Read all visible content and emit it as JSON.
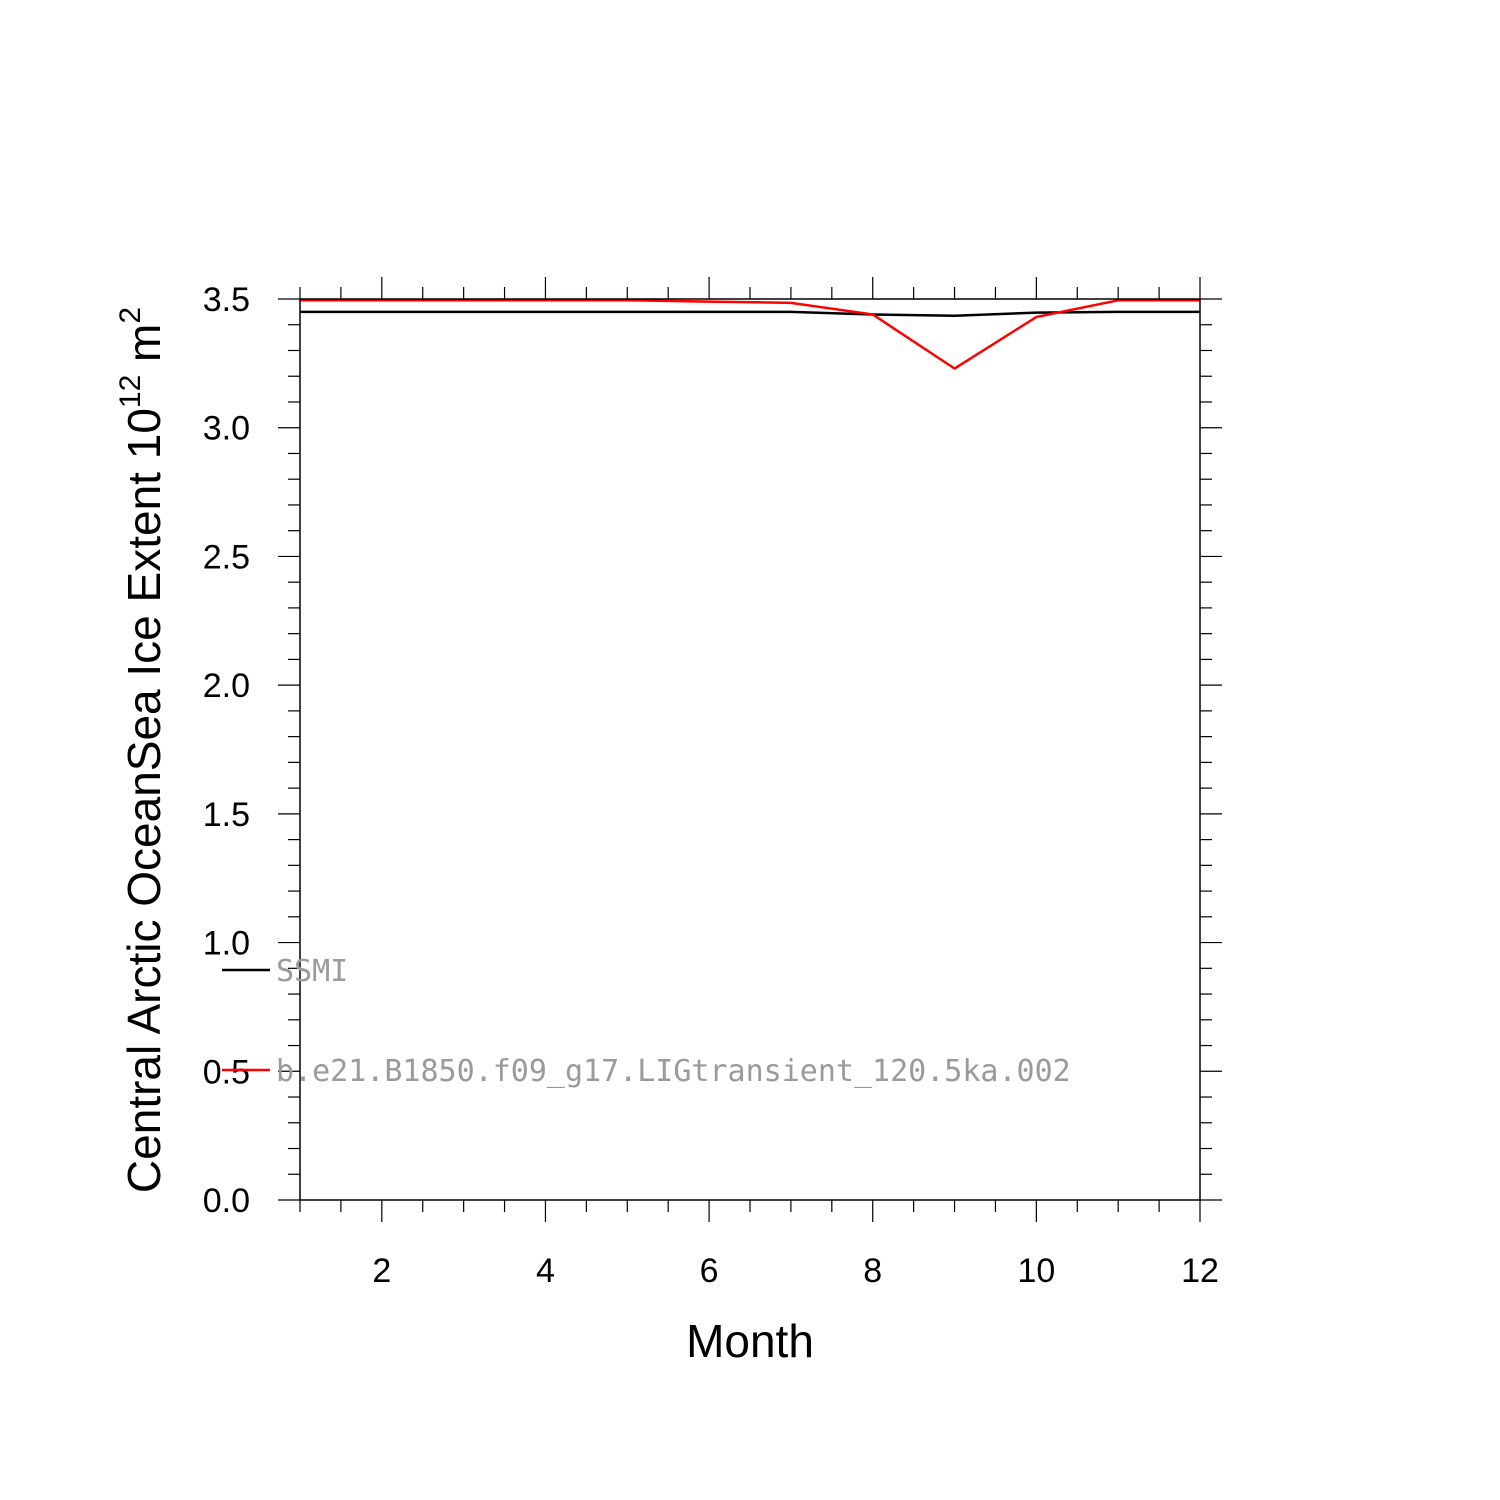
{
  "chart_data": {
    "type": "line",
    "title": "",
    "xlabel": "Month",
    "ylabel": {
      "base": "Central Arctic OceanSea Ice Extent 10",
      "sup1": "12",
      "mid": " m",
      "sup2": "2"
    },
    "xlim": [
      1,
      12
    ],
    "ylim": [
      0,
      3.5
    ],
    "x_major_ticks": [
      2,
      4,
      6,
      8,
      10,
      12
    ],
    "x_tick_labels": [
      "2",
      "4",
      "6",
      "8",
      "10",
      "12"
    ],
    "y_major_ticks": [
      0,
      0.5,
      1,
      1.5,
      2,
      2.5,
      3,
      3.5
    ],
    "y_tick_labels": [
      "0.0",
      "0.5",
      "1.0",
      "1.5",
      "2.0",
      "2.5",
      "3.0",
      "3.5"
    ],
    "x": [
      1,
      2,
      3,
      4,
      5,
      6,
      7,
      8,
      9,
      10,
      11,
      12
    ],
    "series": [
      {
        "name": "SSMI",
        "color": "#000000",
        "values": [
          3.45,
          3.45,
          3.45,
          3.45,
          3.45,
          3.45,
          3.45,
          3.44,
          3.435,
          3.447,
          3.45,
          3.45
        ]
      },
      {
        "name": "b.e21.B1850.f09_g17.LIGtransient_120.5ka.002",
        "color": "#ff0000",
        "values": [
          3.495,
          3.495,
          3.495,
          3.495,
          3.495,
          3.49,
          3.485,
          3.44,
          3.23,
          3.43,
          3.495,
          3.495
        ]
      }
    ],
    "legend_placement": "lower-left inside",
    "grid": false
  }
}
